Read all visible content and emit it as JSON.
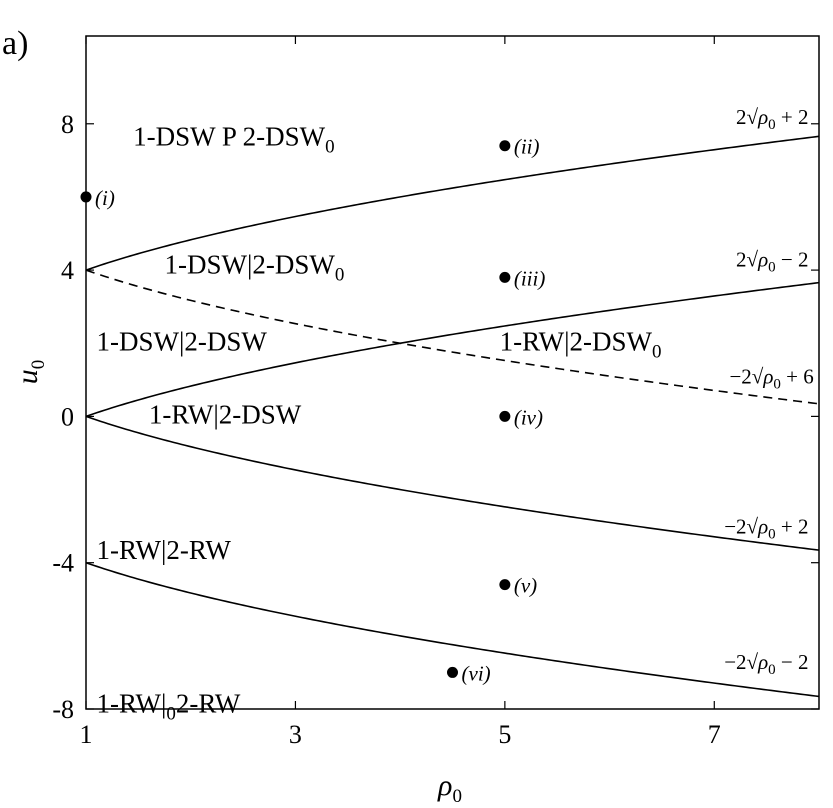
{
  "chart_data": {
    "type": "line",
    "panel_label": "a)",
    "xlabel": "ρ0",
    "ylabel": "u0",
    "xlim": [
      1,
      8
    ],
    "ylim": [
      -8,
      10.4
    ],
    "x_ticks": [
      1,
      3,
      5,
      7
    ],
    "y_ticks": [
      -8,
      -4,
      0,
      4,
      8
    ],
    "y_tick_labels": [
      "-8",
      "-4",
      "0",
      "4",
      "8"
    ],
    "grid": false,
    "series": [
      {
        "label": "2√ρ0 + 2",
        "formula": "2*sqrt(x)+2",
        "style": "solid",
        "label_at": [
          7.9,
          8.0
        ]
      },
      {
        "label": "2√ρ0 − 2",
        "formula": "2*sqrt(x)-2",
        "style": "solid",
        "label_at": [
          7.9,
          4.1
        ]
      },
      {
        "label": "−2√ρ0 + 6",
        "formula": "-2*sqrt(x)+6",
        "style": "dashed",
        "label_at": [
          7.95,
          0.9
        ]
      },
      {
        "label": "−2√ρ0 + 2",
        "formula": "-2*sqrt(x)+2",
        "style": "solid",
        "label_at": [
          7.9,
          -3.2
        ]
      },
      {
        "label": "−2√ρ0 − 2",
        "formula": "-2*sqrt(x)-2",
        "style": "solid",
        "label_at": [
          7.9,
          -6.9
        ]
      }
    ],
    "regions": [
      {
        "label": "1-DSW  P  2-DSW0",
        "at": [
          1.45,
          7.4
        ]
      },
      {
        "label": "1-DSW|2-DSW0",
        "at": [
          1.75,
          3.9
        ]
      },
      {
        "label": "1-DSW|2-DSW",
        "at": [
          1.1,
          1.8
        ]
      },
      {
        "label": "1-RW|2-DSW0",
        "at": [
          4.95,
          1.8
        ]
      },
      {
        "label": "1-RW|2-DSW",
        "at": [
          1.6,
          -0.2
        ]
      },
      {
        "label": "1-RW|2-RW",
        "at": [
          1.1,
          -3.9
        ]
      },
      {
        "label": "1-RW|02-RW",
        "at": [
          1.1,
          -8.1
        ]
      }
    ],
    "points": [
      {
        "label": "(i)",
        "x": 1.0,
        "y": 6.0
      },
      {
        "label": "(ii)",
        "x": 5.0,
        "y": 7.4
      },
      {
        "label": "(iii)",
        "x": 5.0,
        "y": 3.8
      },
      {
        "label": "(iv)",
        "x": 5.0,
        "y": 0.0
      },
      {
        "label": "(v)",
        "x": 5.0,
        "y": -4.6
      },
      {
        "label": "(vi)",
        "x": 4.5,
        "y": -7.0
      }
    ]
  }
}
